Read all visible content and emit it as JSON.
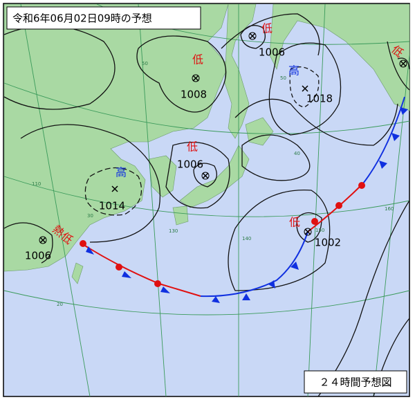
{
  "title": "令和6年06月02日09時の予想",
  "forecast_label": "２４時間予想図",
  "systems": [
    {
      "kind": "低",
      "pressure": "1006"
    },
    {
      "kind": "低",
      "pressure": "1008"
    },
    {
      "kind": "高",
      "pressure": "1018"
    },
    {
      "kind": "低",
      "pressure": "1006"
    },
    {
      "kind": "高",
      "pressure": "1014"
    },
    {
      "kind": "熱低",
      "pressure": "1006"
    },
    {
      "kind": "低",
      "pressure": "1002"
    },
    {
      "kind": "低"
    }
  ],
  "grid_labels": [
    "50",
    "50",
    "40",
    "30",
    "20",
    "110",
    "130",
    "140",
    "150",
    "160"
  ]
}
